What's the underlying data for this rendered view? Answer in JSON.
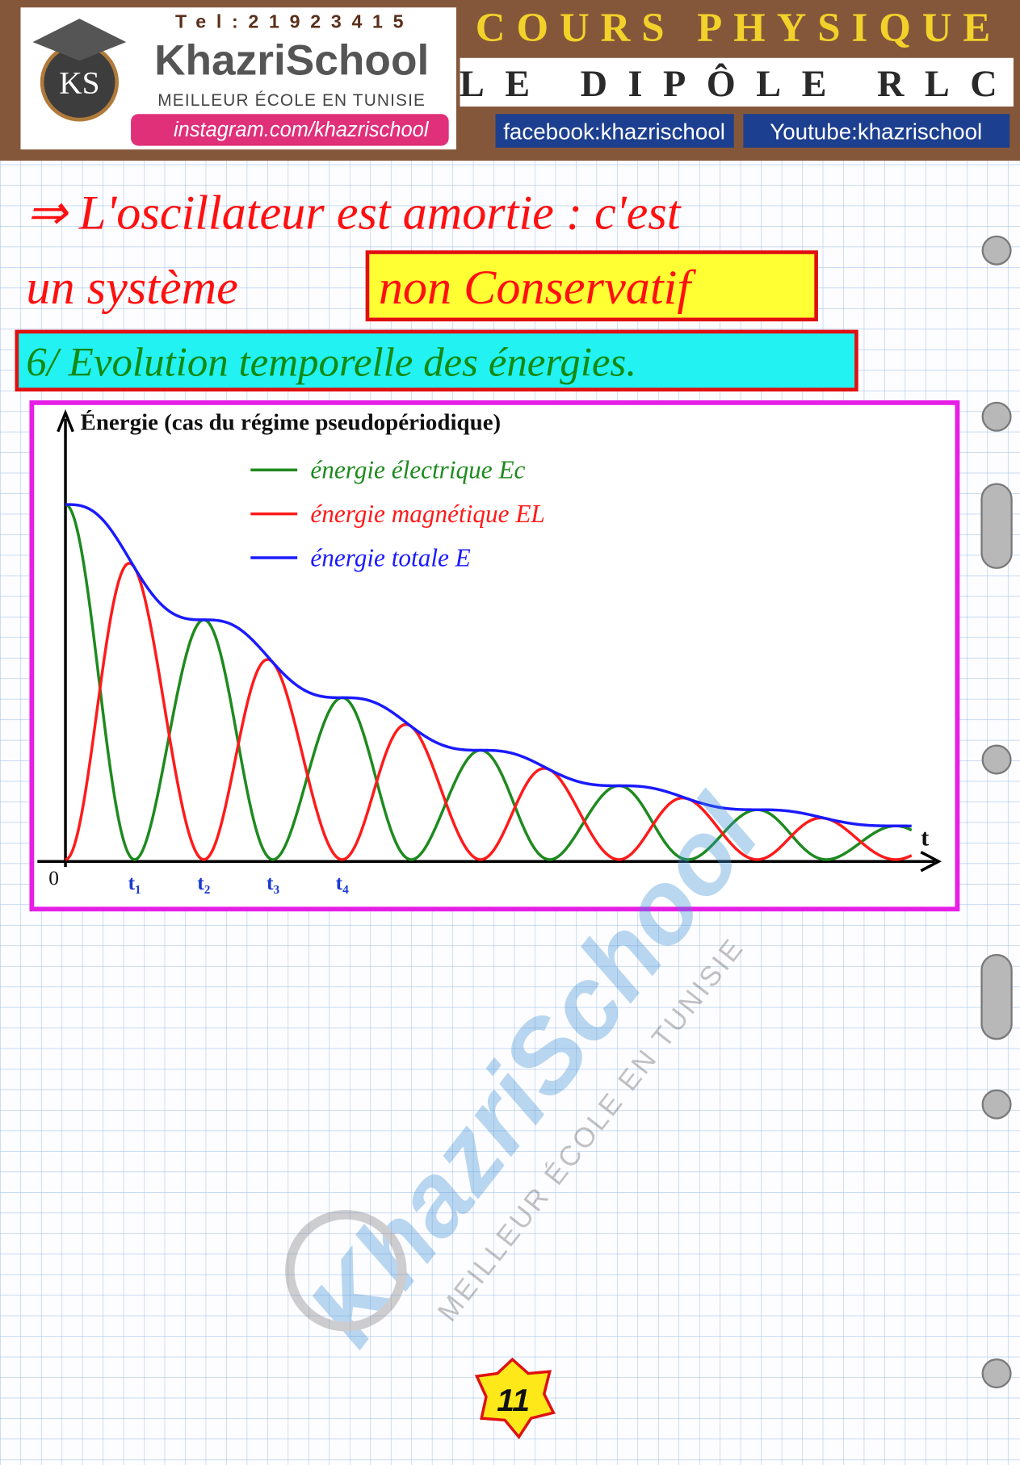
{
  "header": {
    "phone": "Tel:21923415",
    "brand": "KhazriSchool",
    "logo": "KS",
    "slogan": "MEILLEUR ÉCOLE EN TUNISIE",
    "instagram": "instagram.com/khazrischool",
    "course": "COURS PHYSIQUE",
    "chapter": "LE DIPÔLE RLC",
    "facebook": "facebook:khazrischool",
    "youtube": "Youtube:khazrischool"
  },
  "notes": {
    "line1": "⇒ L'oscillateur est amortie : c'est",
    "line2": "un système",
    "highlight": "non Conservatif",
    "section": "6/ Evolution temporelle des énergies."
  },
  "figure": {
    "title": "Énergie (cas du régime pseudopériodique)",
    "x_label": "t",
    "origin": "0",
    "ticks": [
      "t₁",
      "t₂",
      "t₃",
      "t₄"
    ],
    "legend": [
      {
        "name": "énergie électrique Ec",
        "color": "#1e8a1e"
      },
      {
        "name": "énergie magnétique EL",
        "color": "#ff1a1a"
      },
      {
        "name": "énergie totale E",
        "color": "#1a1aff"
      }
    ]
  },
  "watermark": {
    "brand": "KhazriSchool",
    "slogan": "MEILLEUR ÉCOLE EN TUNISIE"
  },
  "page_number": "11"
}
